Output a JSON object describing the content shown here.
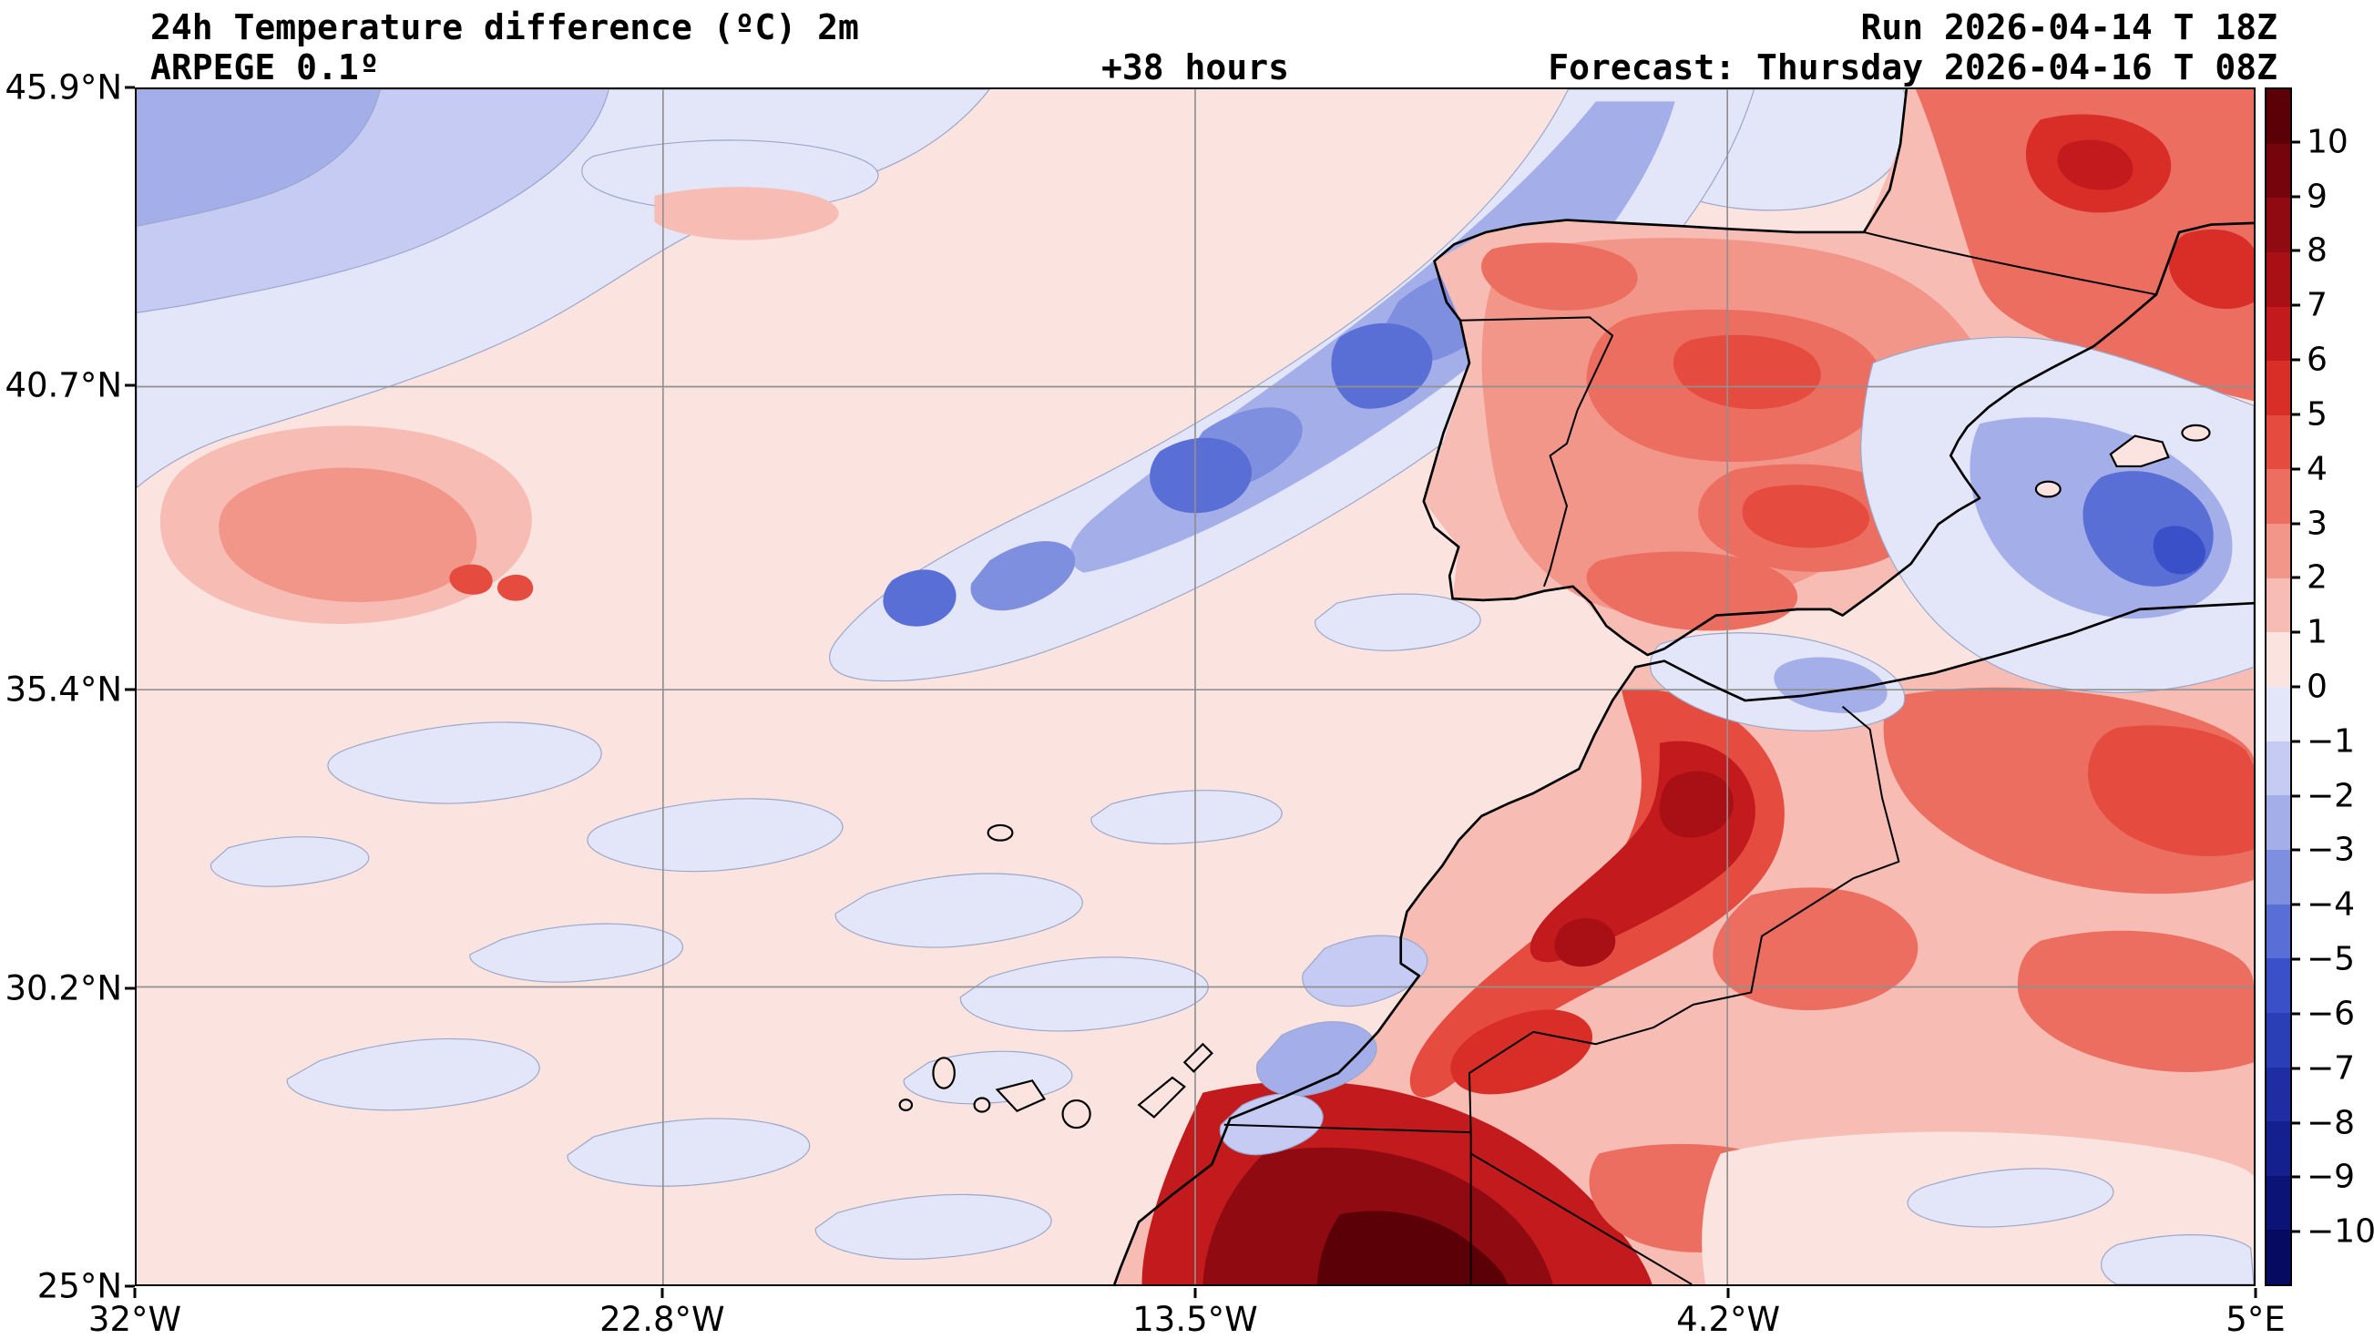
{
  "header": {
    "title": "24h Temperature difference (ºC) 2m",
    "model": "ARPEGE 0.1º",
    "lead": "+38 hours",
    "run": "Run 2026-04-14 T 18Z",
    "forecast": "Forecast: Thursday 2026-04-16 T 08Z"
  },
  "map": {
    "extent": {
      "lon_min": -32,
      "lon_max": 5,
      "lat_min": 25,
      "lat_max": 45.9
    },
    "lat_ticks": [
      {
        "label": "45.9°N",
        "value": 45.9
      },
      {
        "label": "40.7°N",
        "value": 40.7
      },
      {
        "label": "35.4°N",
        "value": 35.4
      },
      {
        "label": "30.2°N",
        "value": 30.2
      },
      {
        "label": "25°N",
        "value": 25
      }
    ],
    "lon_ticks": [
      {
        "label": "32°W",
        "value": -32
      },
      {
        "label": "22.8°W",
        "value": -22.8
      },
      {
        "label": "13.5°W",
        "value": -13.5
      },
      {
        "label": "4.2°W",
        "value": -4.2
      },
      {
        "label": "5°E",
        "value": 5
      }
    ]
  },
  "palette": {
    "p10": "#5c0008",
    "p9": "#75040c",
    "p8": "#8f0a11",
    "p7": "#a81016",
    "p6": "#c31b1d",
    "p5": "#d92e28",
    "p4": "#e54b3f",
    "p3": "#ec6e60",
    "p2": "#f2968a",
    "p1": "#f7bdb4",
    "p0": "#fbe3df",
    "m0": "#e3e6f8",
    "m1": "#c5cbf2",
    "m2": "#a4afe9",
    "m3": "#7f8fe0",
    "m4": "#5a6fd6",
    "m5": "#3950c8",
    "m6": "#2a3eb6",
    "m7": "#1e2ea2",
    "m8": "#14208d",
    "m9": "#0c1377",
    "m10": "#060a60"
  },
  "colorbar": {
    "unit": "ºC",
    "bands": [
      "p10",
      "p9",
      "p8",
      "p7",
      "p6",
      "p5",
      "p4",
      "p3",
      "p2",
      "p1",
      "p0",
      "m0",
      "m1",
      "m2",
      "m3",
      "m4",
      "m5",
      "m6",
      "m7",
      "m8",
      "m9",
      "m10"
    ],
    "tick_labels": [
      "10",
      "9",
      "8",
      "7",
      "6",
      "5",
      "4",
      "3",
      "2",
      "1",
      "0",
      "−1",
      "−2",
      "−3",
      "−4",
      "−5",
      "−6",
      "−7",
      "−8",
      "−9",
      "−10"
    ]
  },
  "chart_data": {
    "type": "heatmap",
    "title": "24h Temperature difference (ºC) 2m",
    "model": "ARPEGE 0.1º",
    "lead_hours": 38,
    "run": "2026-04-14 18Z",
    "valid": "Thursday 2026-04-16 08Z",
    "extent": {
      "lon": [
        -32,
        5
      ],
      "lat": [
        25,
        45.9
      ]
    },
    "scale_range_c": [
      -10,
      10
    ],
    "features": [
      {
        "region": "NE Atlantic frontal band from 46N 7W to 36N 19W",
        "value_c": -3,
        "peak_c": -5
      },
      {
        "region": "Far NW Atlantic corner (32W 43-46N)",
        "value_c": -2
      },
      {
        "region": "Bay of Biscay",
        "value_c": -1
      },
      {
        "region": "Mid-Atlantic red patch near 29W 38N",
        "value_c": 2
      },
      {
        "region": "Open subtropical Atlantic background",
        "value_c": 1
      },
      {
        "region": "Scattered Atlantic streaks 25-35N",
        "value_c": -1
      },
      {
        "region": "Iberian Peninsula interior",
        "value_c": 4
      },
      {
        "region": "SE France / NE of Pyrenees",
        "value_c": 6
      },
      {
        "region": "NE Spain, Ebro valley and Balearic Sea",
        "value_c": -4,
        "peak_c": -6
      },
      {
        "region": "Alboran Sea / Strait of Gibraltar",
        "value_c": -2
      },
      {
        "region": "Morocco Atlas mountains",
        "value_c": 7
      },
      {
        "region": "Southern Morocco / Western Sahara",
        "value_c": 9,
        "peak_c": 11
      },
      {
        "region": "Algeria interior",
        "value_c": 3
      },
      {
        "region": "SE corner lowlands",
        "value_c": 1
      }
    ]
  }
}
